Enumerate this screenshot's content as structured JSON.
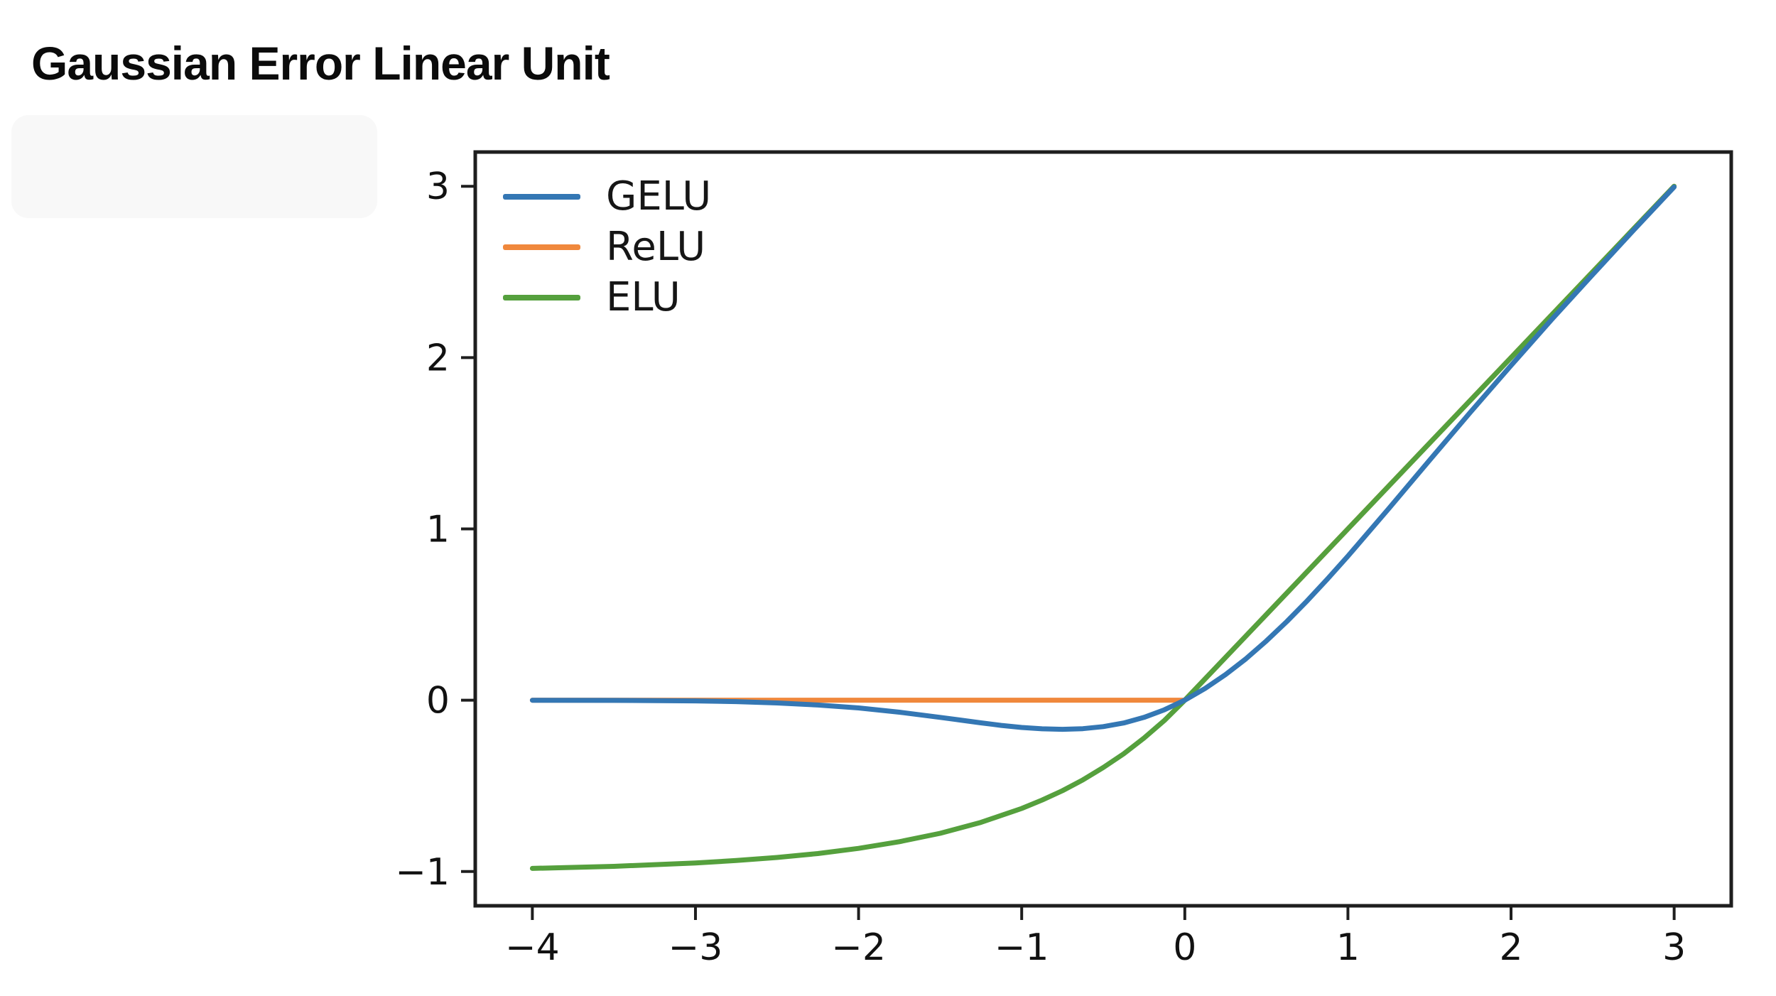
{
  "page": {
    "title": "Gaussian Error Linear Unit"
  },
  "chart_data": {
    "type": "line",
    "title": "Gaussian Error Linear Unit",
    "xlabel": "",
    "ylabel": "",
    "xlim": [
      -4.35,
      3.35
    ],
    "ylim": [
      -1.2,
      3.2
    ],
    "grid": false,
    "legend_position": "upper-left",
    "x_ticks": [
      {
        "value": -4,
        "label": "−4"
      },
      {
        "value": -3,
        "label": "−3"
      },
      {
        "value": -2,
        "label": "−2"
      },
      {
        "value": -1,
        "label": "−1"
      },
      {
        "value": 0,
        "label": "0"
      },
      {
        "value": 1,
        "label": "1"
      },
      {
        "value": 2,
        "label": "2"
      },
      {
        "value": 3,
        "label": "3"
      }
    ],
    "y_ticks": [
      {
        "value": -1,
        "label": "−1"
      },
      {
        "value": 0,
        "label": "0"
      },
      {
        "value": 1,
        "label": "1"
      },
      {
        "value": 2,
        "label": "2"
      },
      {
        "value": 3,
        "label": "3"
      }
    ],
    "axis_color": "#1e1e1e",
    "tick_label_color": "#111111",
    "series": [
      {
        "name": "GELU",
        "color": "#3477b4",
        "points": [
          [
            -4,
            -0.0001
          ],
          [
            -3.5,
            -0.001
          ],
          [
            -3,
            -0.004
          ],
          [
            -2.75,
            -0.008
          ],
          [
            -2.5,
            -0.016
          ],
          [
            -2.25,
            -0.028
          ],
          [
            -2,
            -0.045
          ],
          [
            -1.75,
            -0.07
          ],
          [
            -1.5,
            -0.1
          ],
          [
            -1.375,
            -0.116
          ],
          [
            -1.25,
            -0.132
          ],
          [
            -1.125,
            -0.147
          ],
          [
            -1,
            -0.159
          ],
          [
            -0.875,
            -0.167
          ],
          [
            -0.75,
            -0.17
          ],
          [
            -0.625,
            -0.166
          ],
          [
            -0.5,
            -0.154
          ],
          [
            -0.375,
            -0.133
          ],
          [
            -0.25,
            -0.1
          ],
          [
            -0.125,
            -0.056
          ],
          [
            0,
            0
          ],
          [
            0.125,
            0.069
          ],
          [
            0.25,
            0.15
          ],
          [
            0.375,
            0.242
          ],
          [
            0.5,
            0.346
          ],
          [
            0.625,
            0.459
          ],
          [
            0.75,
            0.58
          ],
          [
            0.875,
            0.708
          ],
          [
            1,
            0.841
          ],
          [
            1.25,
            1.118
          ],
          [
            1.5,
            1.4
          ],
          [
            1.75,
            1.68
          ],
          [
            2,
            1.954
          ],
          [
            2.25,
            2.223
          ],
          [
            2.5,
            2.484
          ],
          [
            2.75,
            2.742
          ],
          [
            3,
            2.996
          ]
        ]
      },
      {
        "name": "ReLU",
        "color": "#f0883c",
        "points": [
          [
            -4,
            0
          ],
          [
            0,
            0
          ],
          [
            3,
            3
          ]
        ]
      },
      {
        "name": "ELU",
        "color": "#55a03d",
        "points": [
          [
            -4,
            -0.982
          ],
          [
            -3.5,
            -0.97
          ],
          [
            -3,
            -0.95
          ],
          [
            -2.75,
            -0.936
          ],
          [
            -2.5,
            -0.918
          ],
          [
            -2.25,
            -0.895
          ],
          [
            -2,
            -0.865
          ],
          [
            -1.75,
            -0.826
          ],
          [
            -1.5,
            -0.777
          ],
          [
            -1.25,
            -0.713
          ],
          [
            -1,
            -0.632
          ],
          [
            -0.875,
            -0.583
          ],
          [
            -0.75,
            -0.528
          ],
          [
            -0.625,
            -0.465
          ],
          [
            -0.5,
            -0.393
          ],
          [
            -0.375,
            -0.313
          ],
          [
            -0.25,
            -0.221
          ],
          [
            -0.125,
            -0.118
          ],
          [
            0,
            0
          ],
          [
            1,
            1
          ],
          [
            2,
            2
          ],
          [
            3,
            3
          ]
        ]
      }
    ],
    "draw_order": [
      1,
      2,
      0
    ]
  }
}
